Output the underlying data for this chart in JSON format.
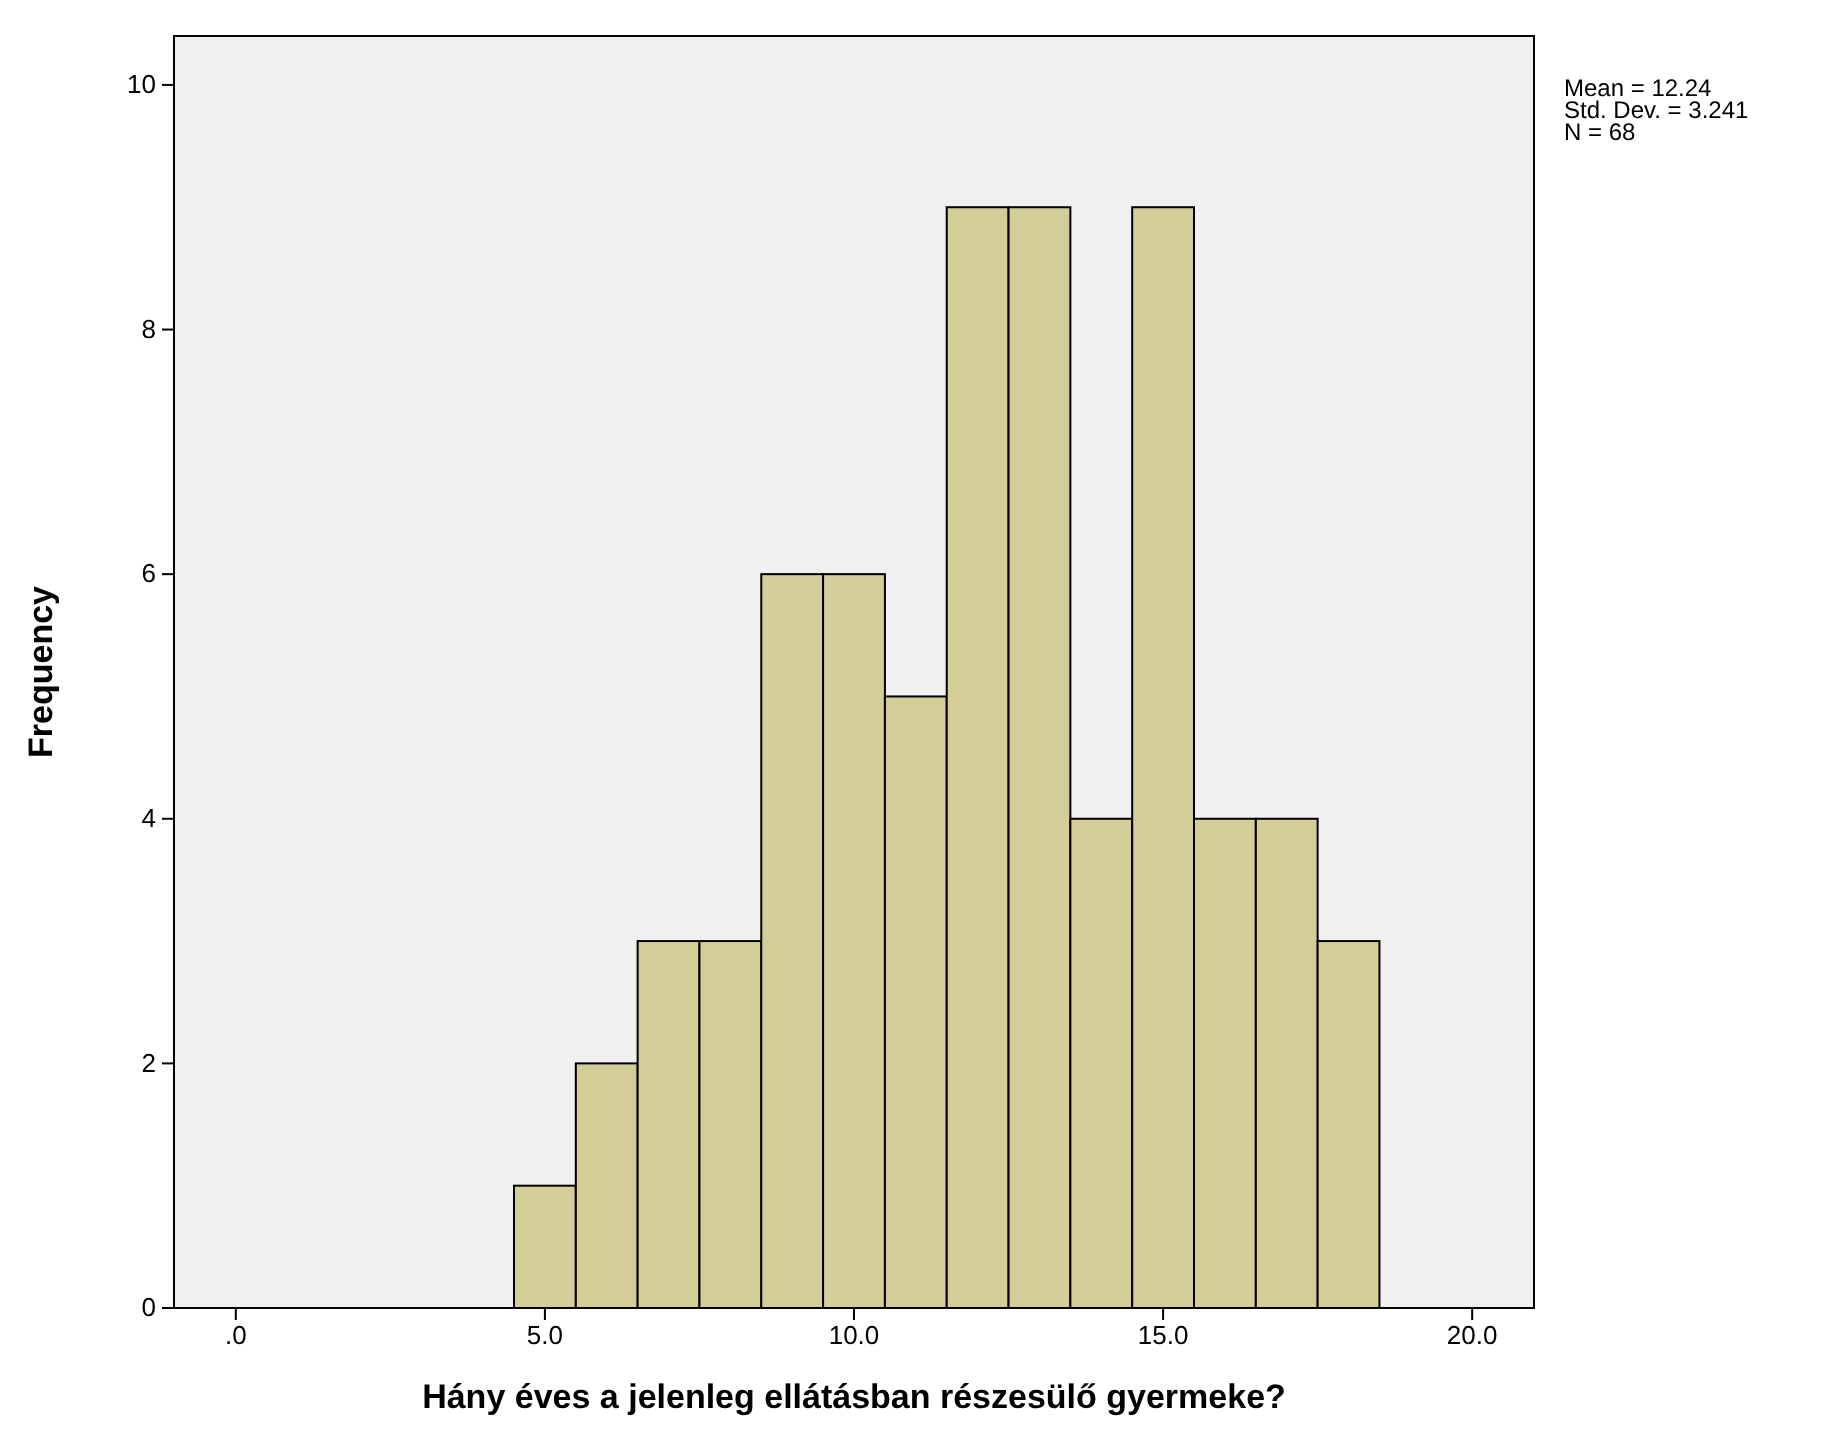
{
  "chart_data": {
    "type": "histogram",
    "xlabel": "Hány éves a jelenleg ellátásban részesülő gyermeke?",
    "ylabel": "Frequency",
    "bins": [
      4.5,
      5.5,
      6.5,
      7.5,
      8.5,
      9.5,
      10.5,
      11.5,
      12.5,
      13.5,
      14.5,
      15.5,
      16.5,
      17.5,
      18.5
    ],
    "values": [
      1,
      2,
      3,
      3,
      6,
      6,
      5,
      9,
      9,
      4,
      9,
      4,
      4,
      3
    ],
    "color": "#d3ce97",
    "xlim": [
      -1,
      21
    ],
    "xticks": [
      {
        "value": 0,
        "label": ".0"
      },
      {
        "value": 5,
        "label": "5.0"
      },
      {
        "value": 10,
        "label": "10.0"
      },
      {
        "value": 15,
        "label": "15.0"
      },
      {
        "value": 20,
        "label": "20.0"
      }
    ],
    "ylim": [
      0,
      10.4
    ],
    "yticks": [
      0,
      2,
      4,
      6,
      8,
      10
    ],
    "grid": false,
    "annotations": [
      "Mean = 12.24",
      "Std. Dev. = 3.241",
      "N = 68"
    ]
  }
}
